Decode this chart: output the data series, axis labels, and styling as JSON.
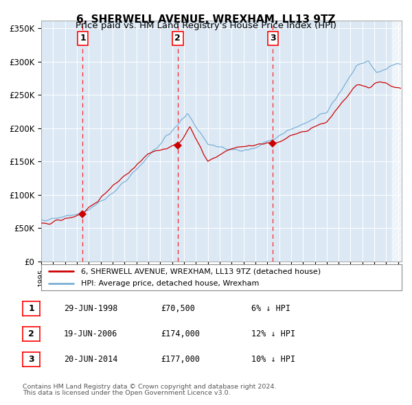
{
  "title": "6, SHERWELL AVENUE, WREXHAM, LL13 9TZ",
  "subtitle": "Price paid vs. HM Land Registry's House Price Index (HPI)",
  "hpi_color": "#7bafd4",
  "price_color": "#cc0000",
  "plot_bg": "#dce9f5",
  "ylabel_ticks": [
    "£0",
    "£50K",
    "£100K",
    "£150K",
    "£200K",
    "£250K",
    "£300K",
    "£350K"
  ],
  "ytick_values": [
    0,
    50000,
    100000,
    150000,
    200000,
    250000,
    300000,
    350000
  ],
  "ylim": [
    0,
    362000
  ],
  "xlim_start": 1995.0,
  "xlim_end": 2025.3,
  "transactions": [
    {
      "year": 1998.49,
      "price": 70500,
      "label": "1"
    },
    {
      "year": 2006.47,
      "price": 174000,
      "label": "2"
    },
    {
      "year": 2014.47,
      "price": 177000,
      "label": "3"
    }
  ],
  "legend_price_label": "6, SHERWELL AVENUE, WREXHAM, LL13 9TZ (detached house)",
  "legend_hpi_label": "HPI: Average price, detached house, Wrexham",
  "table_entries": [
    {
      "num": "1",
      "date": "29-JUN-1998",
      "price": "£70,500",
      "hpi": "6% ↓ HPI"
    },
    {
      "num": "2",
      "date": "19-JUN-2006",
      "price": "£174,000",
      "hpi": "12% ↓ HPI"
    },
    {
      "num": "3",
      "date": "20-JUN-2014",
      "price": "£177,000",
      "hpi": "10% ↓ HPI"
    }
  ],
  "footnote1": "Contains HM Land Registry data © Crown copyright and database right 2024.",
  "footnote2": "This data is licensed under the Open Government Licence v3.0."
}
